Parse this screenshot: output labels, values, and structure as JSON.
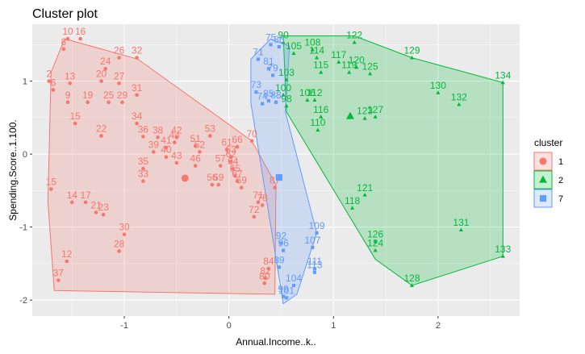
{
  "chart_data": {
    "type": "scatter",
    "title": "Cluster plot",
    "xlabel": "Annual.Income..k..",
    "ylabel": "Spending.Score..1.100.",
    "xlim": [
      -1.88,
      2.78
    ],
    "ylim": [
      -2.22,
      1.78
    ],
    "x_ticks": [
      -1,
      0,
      1,
      2
    ],
    "y_ticks": [
      -2,
      -1,
      0,
      1
    ],
    "grid": true,
    "legend": {
      "title": "cluster",
      "placement": "right"
    },
    "series": [
      {
        "name": "1",
        "color": "#F8766D",
        "shape": "circle",
        "centroid": [
          -0.42,
          -0.33
        ],
        "hull": [
          [
            -1.7,
            1.12
          ],
          [
            -1.57,
            1.58
          ],
          [
            -0.87,
            1.3
          ],
          [
            0.22,
            0.18
          ],
          [
            0.45,
            -0.42
          ],
          [
            0.44,
            -1.92
          ],
          [
            -1.67,
            -1.87
          ],
          [
            -1.73,
            -0.65
          ]
        ],
        "points": [
          {
            "label": "10",
            "x": -1.54,
            "y": 1.58
          },
          {
            "label": "16",
            "x": -1.42,
            "y": 1.58
          },
          {
            "label": "8",
            "x": -1.58,
            "y": 1.44
          },
          {
            "label": "26",
            "x": -1.05,
            "y": 1.32
          },
          {
            "label": "32",
            "x": -0.88,
            "y": 1.32
          },
          {
            "label": "24",
            "x": -1.18,
            "y": 1.17
          },
          {
            "label": "2",
            "x": -1.72,
            "y": 1.0
          },
          {
            "label": "6",
            "x": -1.68,
            "y": 0.88
          },
          {
            "label": "13",
            "x": -1.52,
            "y": 0.97
          },
          {
            "label": "20",
            "x": -1.22,
            "y": 1.0
          },
          {
            "label": "27",
            "x": -1.05,
            "y": 0.97
          },
          {
            "label": "9",
            "x": -1.54,
            "y": 0.71
          },
          {
            "label": "19",
            "x": -1.35,
            "y": 0.71
          },
          {
            "label": "25",
            "x": -1.15,
            "y": 0.71
          },
          {
            "label": "29",
            "x": -1.02,
            "y": 0.71
          },
          {
            "label": "31",
            "x": -0.88,
            "y": 0.81
          },
          {
            "label": "15",
            "x": -1.47,
            "y": 0.42
          },
          {
            "label": "22",
            "x": -1.22,
            "y": 0.25
          },
          {
            "label": "34",
            "x": -0.88,
            "y": 0.42
          },
          {
            "label": "36",
            "x": -0.82,
            "y": 0.24
          },
          {
            "label": "38",
            "x": -0.68,
            "y": 0.23
          },
          {
            "label": "39",
            "x": -0.72,
            "y": 0.03
          },
          {
            "label": "41",
            "x": -0.6,
            "y": 0.09
          },
          {
            "label": "40",
            "x": -0.6,
            "y": -0.04
          },
          {
            "label": "43",
            "x": -0.5,
            "y": -0.12
          },
          {
            "label": "42",
            "x": -0.5,
            "y": 0.23
          },
          {
            "label": "44",
            "x": -0.52,
            "y": 0.16
          },
          {
            "label": "46",
            "x": -0.32,
            "y": -0.16
          },
          {
            "label": "51",
            "x": -0.32,
            "y": 0.11
          },
          {
            "label": "52",
            "x": -0.28,
            "y": 0.03
          },
          {
            "label": "53",
            "x": -0.18,
            "y": 0.25
          },
          {
            "label": "61",
            "x": -0.02,
            "y": 0.06
          },
          {
            "label": "63",
            "x": 0.02,
            "y": -0.04
          },
          {
            "label": "66",
            "x": 0.08,
            "y": 0.1
          },
          {
            "label": "70",
            "x": 0.22,
            "y": 0.18
          },
          {
            "label": "35",
            "x": -0.82,
            "y": -0.2
          },
          {
            "label": "33",
            "x": -0.82,
            "y": -0.37
          },
          {
            "label": "57",
            "x": -0.08,
            "y": -0.16
          },
          {
            "label": "62",
            "x": 0.02,
            "y": -0.1
          },
          {
            "label": "64",
            "x": 0.04,
            "y": -0.2
          },
          {
            "label": "65",
            "x": 0.06,
            "y": -0.3
          },
          {
            "label": "56",
            "x": -0.16,
            "y": -0.42
          },
          {
            "label": "59",
            "x": -0.1,
            "y": -0.42
          },
          {
            "label": "69",
            "x": 0.12,
            "y": -0.46
          },
          {
            "label": "67",
            "x": 0.08,
            "y": -0.37
          },
          {
            "label": "87",
            "x": 0.44,
            "y": -0.46
          },
          {
            "label": "15",
            "x": -1.7,
            "y": -0.48
          },
          {
            "label": "14",
            "x": -1.5,
            "y": -0.66
          },
          {
            "label": "17",
            "x": -1.37,
            "y": -0.66
          },
          {
            "label": "21",
            "x": -1.27,
            "y": -0.8
          },
          {
            "label": "23",
            "x": -1.2,
            "y": -0.83
          },
          {
            "label": "71",
            "x": 0.28,
            "y": -0.66
          },
          {
            "label": "78",
            "x": 0.32,
            "y": -0.7
          },
          {
            "label": "72",
            "x": 0.24,
            "y": -0.86
          },
          {
            "label": "30",
            "x": -1.0,
            "y": -1.1
          },
          {
            "label": "28",
            "x": -1.05,
            "y": -1.33
          },
          {
            "label": "12",
            "x": -1.55,
            "y": -1.47
          },
          {
            "label": "37",
            "x": -1.63,
            "y": -1.73
          },
          {
            "label": "84",
            "x": 0.38,
            "y": -1.57
          },
          {
            "label": "82",
            "x": 0.35,
            "y": -1.7
          },
          {
            "label": "80",
            "x": 0.34,
            "y": -1.77
          }
        ]
      },
      {
        "name": "2",
        "color": "#00BA38",
        "shape": "triangle",
        "centroid": [
          1.16,
          0.52
        ],
        "hull": [
          [
            0.52,
            1.62
          ],
          [
            1.2,
            1.62
          ],
          [
            1.75,
            1.32
          ],
          [
            2.62,
            0.98
          ],
          [
            2.62,
            -1.4
          ],
          [
            1.75,
            -1.8
          ],
          [
            1.4,
            -1.44
          ],
          [
            0.55,
            0.58
          ]
        ],
        "points": [
          {
            "label": "90",
            "x": 0.52,
            "y": 1.53
          },
          {
            "label": "105",
            "x": 0.62,
            "y": 1.38
          },
          {
            "label": "108",
            "x": 0.8,
            "y": 1.43
          },
          {
            "label": "114",
            "x": 0.84,
            "y": 1.32
          },
          {
            "label": "122",
            "x": 1.2,
            "y": 1.53
          },
          {
            "label": "129",
            "x": 1.75,
            "y": 1.32
          },
          {
            "label": "117",
            "x": 1.05,
            "y": 1.26
          },
          {
            "label": "120",
            "x": 1.22,
            "y": 1.19
          },
          {
            "label": "119",
            "x": 1.15,
            "y": 1.12
          },
          {
            "label": "125",
            "x": 1.35,
            "y": 1.1
          },
          {
            "label": "115",
            "x": 0.88,
            "y": 1.12
          },
          {
            "label": "103",
            "x": 0.55,
            "y": 1.02
          },
          {
            "label": "134",
            "x": 2.62,
            "y": 0.98
          },
          {
            "label": "130",
            "x": 2.0,
            "y": 0.84
          },
          {
            "label": "132",
            "x": 2.2,
            "y": 0.68
          },
          {
            "label": "106",
            "x": 0.75,
            "y": 0.74
          },
          {
            "label": "112",
            "x": 0.82,
            "y": 0.74
          },
          {
            "label": "116",
            "x": 0.88,
            "y": 0.51
          },
          {
            "label": "123",
            "x": 1.3,
            "y": 0.49
          },
          {
            "label": "127",
            "x": 1.4,
            "y": 0.51
          },
          {
            "label": "110",
            "x": 0.85,
            "y": 0.33
          },
          {
            "label": "100",
            "x": 0.52,
            "y": 0.81
          },
          {
            "label": "98",
            "x": 0.55,
            "y": 0.66
          },
          {
            "label": "121",
            "x": 1.3,
            "y": -0.56
          },
          {
            "label": "118",
            "x": 1.18,
            "y": -0.74
          },
          {
            "label": "131",
            "x": 2.22,
            "y": -1.04
          },
          {
            "label": "126",
            "x": 1.4,
            "y": -1.2
          },
          {
            "label": "124",
            "x": 1.4,
            "y": -1.32
          },
          {
            "label": "133",
            "x": 2.62,
            "y": -1.4
          },
          {
            "label": "128",
            "x": 1.75,
            "y": -1.8
          }
        ]
      },
      {
        "name": "7",
        "color": "#619CFF",
        "shape": "square",
        "centroid": [
          0.48,
          -0.32
        ],
        "hull": [
          [
            0.21,
            1.3
          ],
          [
            0.4,
            1.58
          ],
          [
            0.58,
            1.48
          ],
          [
            0.54,
            0.58
          ],
          [
            0.84,
            -1.08
          ],
          [
            0.65,
            -1.92
          ],
          [
            0.52,
            -2.05
          ],
          [
            0.21,
            0.7
          ]
        ],
        "points": [
          {
            "label": "75",
            "x": 0.4,
            "y": 1.5
          },
          {
            "label": "86",
            "x": 0.48,
            "y": 1.47
          },
          {
            "label": "71",
            "x": 0.28,
            "y": 1.3
          },
          {
            "label": "81",
            "x": 0.38,
            "y": 1.17
          },
          {
            "label": "79",
            "x": 0.42,
            "y": 1.08
          },
          {
            "label": "73",
            "x": 0.26,
            "y": 0.85
          },
          {
            "label": "74",
            "x": 0.32,
            "y": 0.69
          },
          {
            "label": "85",
            "x": 0.38,
            "y": 0.73
          },
          {
            "label": "88",
            "x": 0.45,
            "y": 0.71
          },
          {
            "label": "109",
            "x": 0.84,
            "y": -1.08
          },
          {
            "label": "92",
            "x": 0.5,
            "y": -1.22
          },
          {
            "label": "96",
            "x": 0.52,
            "y": -1.32
          },
          {
            "label": "107",
            "x": 0.8,
            "y": -1.28
          },
          {
            "label": "89",
            "x": 0.48,
            "y": -1.55
          },
          {
            "label": "111",
            "x": 0.82,
            "y": -1.57
          },
          {
            "label": "113",
            "x": 0.82,
            "y": -1.62
          },
          {
            "label": "104",
            "x": 0.62,
            "y": -1.8
          },
          {
            "label": "99",
            "x": 0.52,
            "y": -1.95
          },
          {
            "label": "101",
            "x": 0.55,
            "y": -1.97
          }
        ]
      }
    ]
  }
}
